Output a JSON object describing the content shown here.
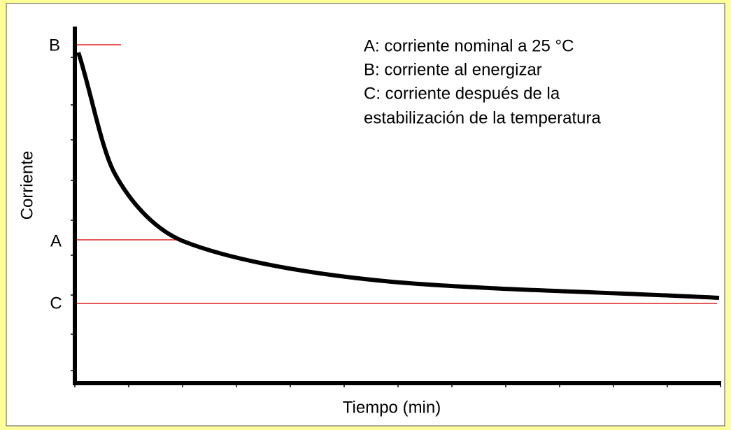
{
  "axes": {
    "y_label": "Corriente",
    "x_label": "Tiempo (min)"
  },
  "levels": [
    {
      "label": "B"
    },
    {
      "label": "A"
    },
    {
      "label": "C"
    }
  ],
  "legend": [
    "A: corriente nominal a 25 °C",
    "B: corriente al energizar",
    "C: corriente después de la",
    "estabilización de la temperatura"
  ]
}
